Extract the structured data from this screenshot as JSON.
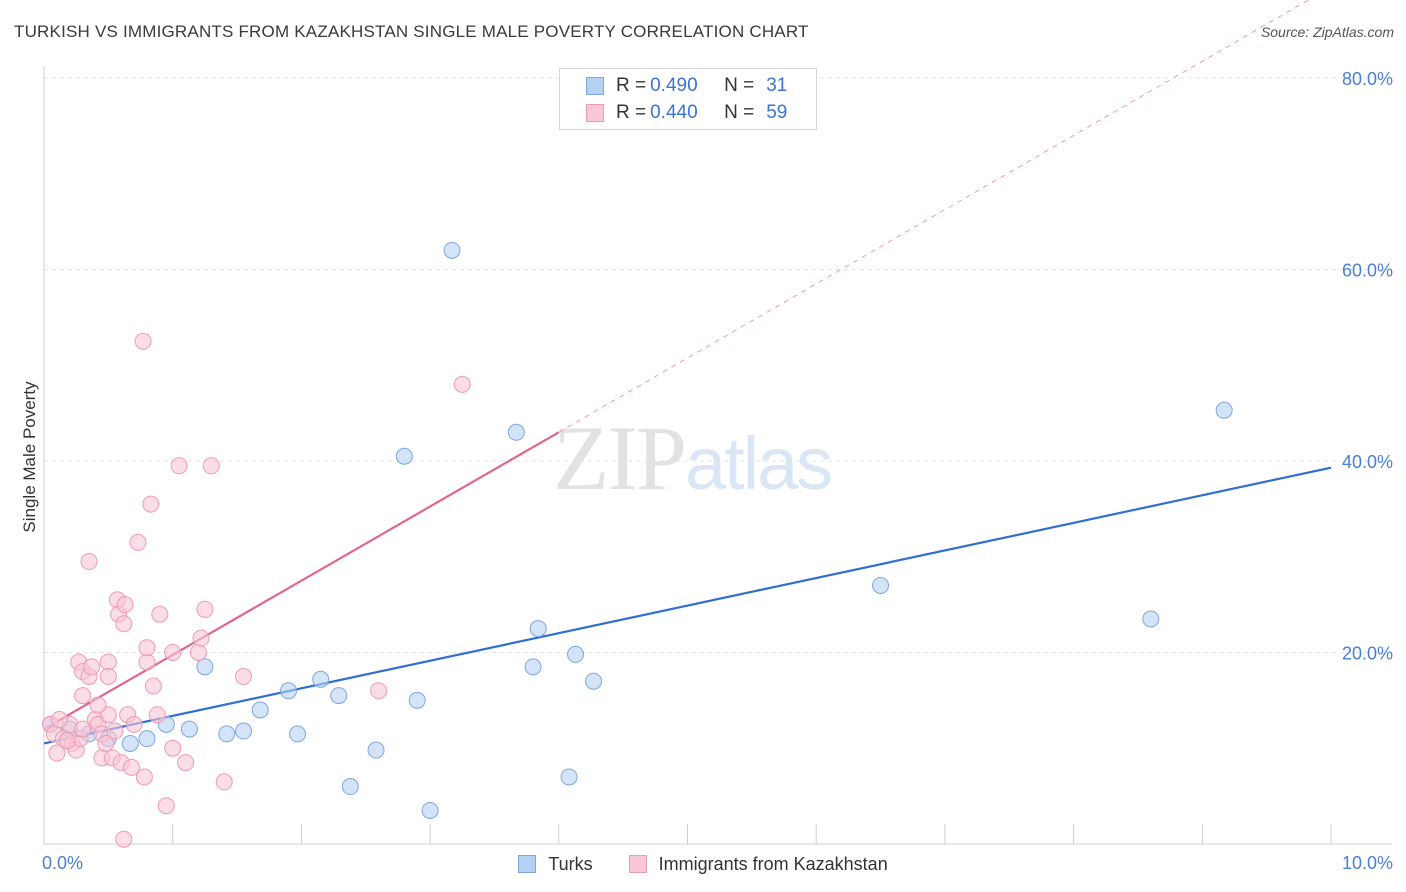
{
  "title": "TURKISH VS IMMIGRANTS FROM KAZAKHSTAN SINGLE MALE POVERTY CORRELATION CHART",
  "source": "Source: ZipAtlas.com",
  "watermark": {
    "part1": "ZIP",
    "part2": "atlas"
  },
  "legend_top": {
    "series1": {
      "r_label": "R =",
      "r_value": "0.490",
      "n_label": "N =",
      "n_value": "31"
    },
    "series2": {
      "r_label": "R =",
      "r_value": "0.440",
      "n_label": "N =",
      "n_value": "59"
    }
  },
  "legend_bottom": {
    "series1": "Turks",
    "series2": "Immigrants from Kazakhstan"
  },
  "colors": {
    "turks_fill": "#b6d0f4",
    "turks_stroke": "#7ea6e0",
    "turks_line": "#2f6fcf",
    "kaz_fill": "#f9c7d6",
    "kaz_stroke": "#ee9ab5",
    "kaz_line": "#e0668f",
    "tick_text": "#4a7fd4",
    "grid": "#e3e3e3"
  },
  "chart_data": {
    "type": "scatter",
    "title": "TURKISH VS IMMIGRANTS FROM KAZAKHSTAN SINGLE MALE POVERTY CORRELATION CHART",
    "xlabel": "",
    "ylabel": "Single Male Poverty",
    "xlim": [
      0,
      10
    ],
    "ylim": [
      0,
      80
    ],
    "x_tick_labels": [
      "0.0%",
      "10.0%"
    ],
    "y_ticks": [
      20,
      40,
      60,
      80
    ],
    "y_tick_labels": [
      "20.0%",
      "40.0%",
      "60.0%",
      "80.0%"
    ],
    "series": [
      {
        "name": "Turks",
        "r": 0.49,
        "n": 31,
        "points": [
          [
            0.05,
            12.5
          ],
          [
            0.2,
            12.0
          ],
          [
            0.35,
            11.5
          ],
          [
            0.5,
            11.0
          ],
          [
            0.67,
            10.5
          ],
          [
            0.8,
            11.0
          ],
          [
            0.95,
            12.5
          ],
          [
            1.13,
            12.0
          ],
          [
            1.25,
            18.5
          ],
          [
            1.42,
            11.5
          ],
          [
            1.55,
            11.8
          ],
          [
            1.68,
            14.0
          ],
          [
            1.9,
            16.0
          ],
          [
            1.97,
            11.5
          ],
          [
            2.15,
            17.2
          ],
          [
            2.29,
            15.5
          ],
          [
            2.38,
            6.0
          ],
          [
            2.58,
            9.8
          ],
          [
            2.8,
            40.5
          ],
          [
            2.9,
            15.0
          ],
          [
            3.0,
            3.5
          ],
          [
            3.17,
            62.0
          ],
          [
            3.67,
            43.0
          ],
          [
            3.8,
            18.5
          ],
          [
            3.84,
            22.5
          ],
          [
            4.08,
            7.0
          ],
          [
            4.13,
            19.8
          ],
          [
            4.27,
            17.0
          ],
          [
            6.5,
            27.0
          ],
          [
            8.6,
            23.5
          ],
          [
            9.17,
            45.3
          ]
        ],
        "trend": {
          "x": [
            0.0,
            10.0
          ],
          "y": [
            10.5,
            39.3
          ],
          "dashed": false
        }
      },
      {
        "name": "Immigrants from Kazakhstan",
        "r": 0.44,
        "n": 59,
        "points": [
          [
            0.05,
            12.5
          ],
          [
            0.08,
            11.5
          ],
          [
            0.1,
            9.5
          ],
          [
            0.15,
            11.0
          ],
          [
            0.2,
            12.5
          ],
          [
            0.22,
            10.5
          ],
          [
            0.25,
            9.8
          ],
          [
            0.28,
            11.0
          ],
          [
            0.3,
            12.0
          ],
          [
            0.3,
            15.5
          ],
          [
            0.27,
            19.0
          ],
          [
            0.3,
            18.0
          ],
          [
            0.35,
            17.5
          ],
          [
            0.37,
            18.5
          ],
          [
            0.35,
            29.5
          ],
          [
            0.4,
            13.0
          ],
          [
            0.42,
            12.5
          ],
          [
            0.45,
            9.0
          ],
          [
            0.45,
            11.5
          ],
          [
            0.48,
            10.5
          ],
          [
            0.5,
            13.5
          ],
          [
            0.5,
            19.0
          ],
          [
            0.5,
            17.5
          ],
          [
            0.53,
            9.0
          ],
          [
            0.57,
            25.5
          ],
          [
            0.58,
            24.0
          ],
          [
            0.6,
            8.5
          ],
          [
            0.62,
            0.5
          ],
          [
            0.62,
            23.0
          ],
          [
            0.63,
            25.0
          ],
          [
            0.65,
            13.5
          ],
          [
            0.68,
            8.0
          ],
          [
            0.73,
            31.5
          ],
          [
            0.77,
            52.5
          ],
          [
            0.78,
            7.0
          ],
          [
            0.8,
            19.0
          ],
          [
            0.8,
            20.5
          ],
          [
            0.83,
            35.5
          ],
          [
            0.85,
            16.5
          ],
          [
            0.88,
            13.5
          ],
          [
            0.9,
            24.0
          ],
          [
            0.95,
            4.0
          ],
          [
            1.0,
            20.0
          ],
          [
            1.0,
            10.0
          ],
          [
            1.05,
            39.5
          ],
          [
            1.1,
            8.5
          ],
          [
            1.2,
            20.0
          ],
          [
            1.22,
            21.5
          ],
          [
            1.25,
            24.5
          ],
          [
            1.3,
            39.5
          ],
          [
            1.4,
            6.5
          ],
          [
            1.55,
            17.5
          ],
          [
            2.6,
            16.0
          ],
          [
            3.25,
            48.0
          ],
          [
            0.12,
            13.0
          ],
          [
            0.18,
            10.8
          ],
          [
            0.42,
            14.5
          ],
          [
            0.55,
            11.8
          ],
          [
            0.7,
            12.5
          ]
        ],
        "trend": {
          "x": [
            0.0,
            4.0
          ],
          "y": [
            12.0,
            43.0
          ],
          "dashed": false
        },
        "trend_extension": {
          "x": [
            4.0,
            10.0
          ],
          "y": [
            43.0,
            89.5
          ],
          "dashed": true
        }
      }
    ]
  }
}
